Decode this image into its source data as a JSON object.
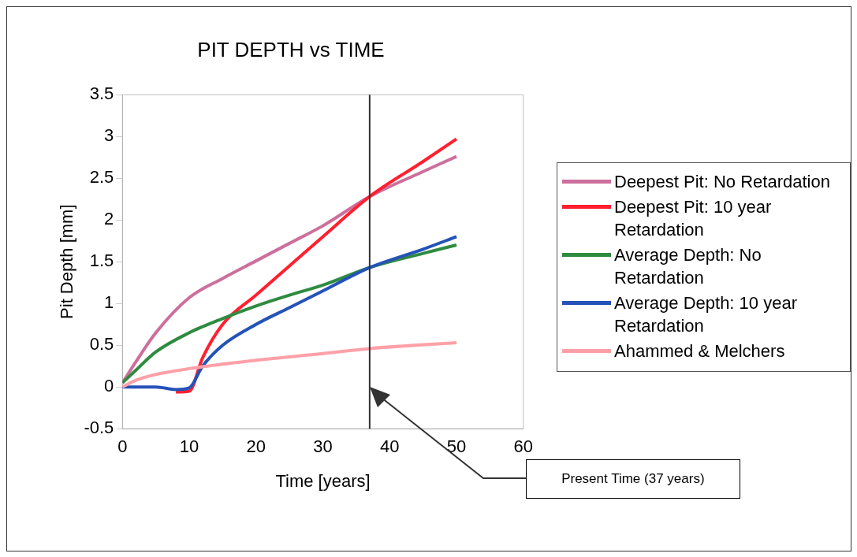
{
  "chart_data": {
    "type": "line",
    "title": "PIT DEPTH vs TIME",
    "xlabel": "Time [years]",
    "ylabel": "Pit Depth [mm]",
    "xlim": [
      0,
      60
    ],
    "xticks": [
      0,
      10,
      20,
      30,
      40,
      50,
      60
    ],
    "ylim": [
      -0.5,
      3.5
    ],
    "yticks": [
      -0.5,
      0,
      0.5,
      1,
      1.5,
      2,
      2.5,
      3,
      3.5
    ],
    "grid": false,
    "legend": "right",
    "marker": "none",
    "line_style": "solid",
    "series": [
      {
        "name": "Deepest Pit: No Retardation",
        "color": "#cc6f9c",
        "x": [
          0,
          2,
          5,
          10,
          15,
          20,
          25,
          30,
          37,
          45,
          50
        ],
        "values": [
          0.05,
          0.3,
          0.65,
          1.07,
          1.3,
          1.51,
          1.72,
          1.93,
          2.28,
          2.58,
          2.76
        ]
      },
      {
        "name": "Deepest Pit: 10 year Retardation",
        "color": "#ff2030",
        "x": [
          8,
          10,
          12,
          15,
          20,
          25,
          30,
          37,
          45,
          50
        ],
        "values": [
          -0.06,
          -0.05,
          0.35,
          0.75,
          1.1,
          1.45,
          1.8,
          2.28,
          2.7,
          2.97
        ]
      },
      {
        "name": "Average Depth: No Retardation",
        "color": "#2e8b40",
        "x": [
          0,
          2,
          5,
          10,
          15,
          20,
          25,
          30,
          37,
          45,
          50
        ],
        "values": [
          0.05,
          0.2,
          0.42,
          0.65,
          0.82,
          0.97,
          1.1,
          1.22,
          1.43,
          1.6,
          1.7
        ]
      },
      {
        "name": "Average Depth: 10 year Retardation",
        "color": "#2452b8",
        "x": [
          0,
          3,
          5,
          8,
          10,
          12,
          15,
          20,
          25,
          30,
          37,
          45,
          50
        ],
        "values": [
          0,
          0,
          0,
          -0.03,
          -0.01,
          0.25,
          0.5,
          0.75,
          0.95,
          1.15,
          1.43,
          1.65,
          1.8
        ]
      },
      {
        "name": "Ahammed & Melchers",
        "color": "#ffa0a8",
        "x": [
          0,
          2,
          5,
          10,
          20,
          30,
          37,
          50
        ],
        "values": [
          0,
          0.08,
          0.15,
          0.22,
          0.32,
          0.4,
          0.46,
          0.53
        ]
      }
    ],
    "ref_lines": [
      {
        "axis": "x",
        "value": 37,
        "color": "#333333"
      }
    ],
    "annotations": [
      "Present Time (37 years)"
    ]
  }
}
